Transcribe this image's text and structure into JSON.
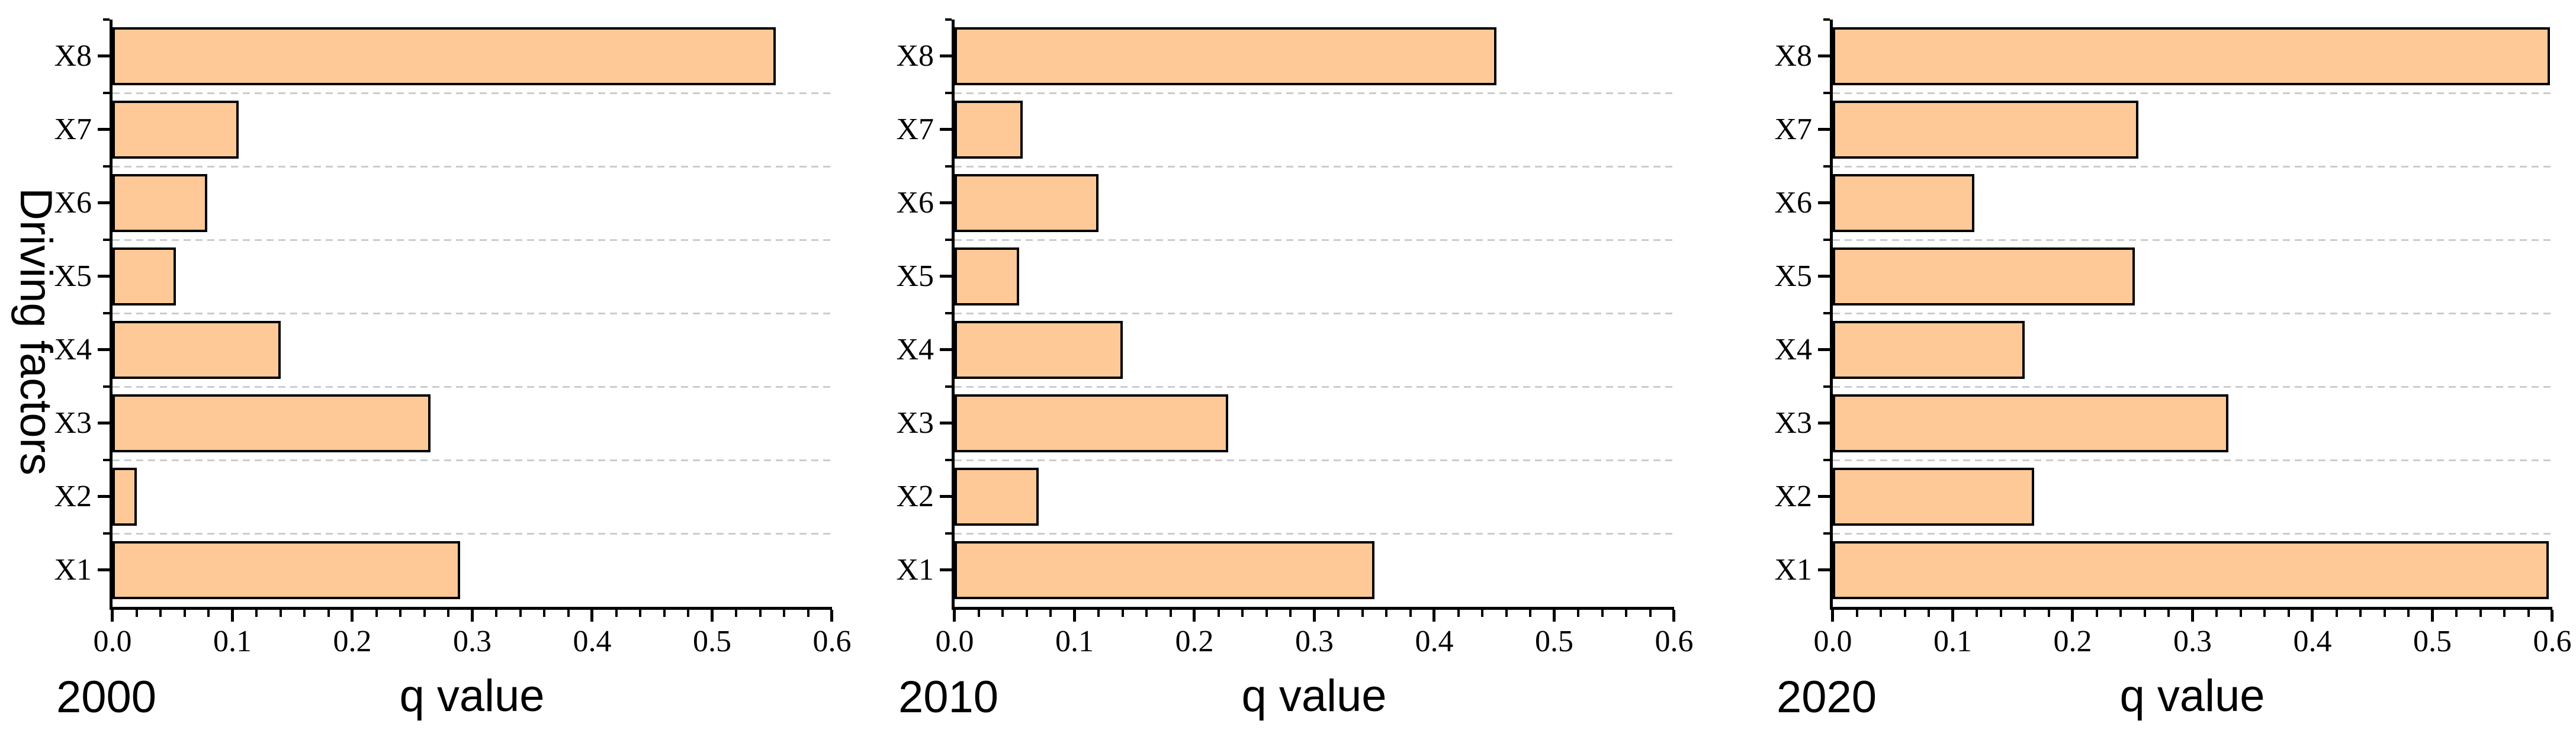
{
  "figure": {
    "background": "#ffffff",
    "bar_fill": "#FEC996",
    "bar_stroke": "#000000",
    "axis_color": "#000000",
    "gridline_color": "#cccccc",
    "ylabel": "Driving factors"
  },
  "chart_data": [
    {
      "type": "bar",
      "orientation": "horizontal",
      "year_label": "2000",
      "xlabel": "q value",
      "categories_bottom_to_top": [
        "X1",
        "X2",
        "X3",
        "X4",
        "X5",
        "X6",
        "X7",
        "X8"
      ],
      "values": {
        "X1": 0.29,
        "X2": 0.02,
        "X3": 0.265,
        "X4": 0.14,
        "X5": 0.053,
        "X6": 0.079,
        "X7": 0.105,
        "X8": 0.553
      },
      "xlim": [
        0.0,
        0.6
      ],
      "xtick_labels": [
        "0.0",
        "0.1",
        "0.2",
        "0.3",
        "0.4",
        "0.5",
        "0.6"
      ],
      "minor_tick_step": 0.02,
      "grid": "dashed horizontal lines between category bands"
    },
    {
      "type": "bar",
      "orientation": "horizontal",
      "year_label": "2010",
      "xlabel": "q value",
      "categories_bottom_to_top": [
        "X1",
        "X2",
        "X3",
        "X4",
        "X5",
        "X6",
        "X7",
        "X8"
      ],
      "values": {
        "X1": 0.35,
        "X2": 0.07,
        "X3": 0.228,
        "X4": 0.14,
        "X5": 0.054,
        "X6": 0.12,
        "X7": 0.057,
        "X8": 0.452
      },
      "xlim": [
        0.0,
        0.6
      ],
      "xtick_labels": [
        "0.0",
        "0.1",
        "0.2",
        "0.3",
        "0.4",
        "0.5",
        "0.6"
      ],
      "minor_tick_step": 0.02,
      "grid": "dashed horizontal lines between category bands"
    },
    {
      "type": "bar",
      "orientation": "horizontal",
      "year_label": "2020",
      "xlabel": "q value",
      "categories_bottom_to_top": [
        "X1",
        "X2",
        "X3",
        "X4",
        "X5",
        "X6",
        "X7",
        "X8"
      ],
      "values": {
        "X1": 0.597,
        "X2": 0.168,
        "X3": 0.33,
        "X4": 0.16,
        "X5": 0.252,
        "X6": 0.118,
        "X7": 0.255,
        "X8": 0.598
      },
      "xlim": [
        0.0,
        0.6
      ],
      "xtick_labels": [
        "0.0",
        "0.1",
        "0.2",
        "0.3",
        "0.4",
        "0.5",
        "0.6"
      ],
      "minor_tick_step": 0.02,
      "grid": "dashed horizontal lines between category bands"
    }
  ]
}
